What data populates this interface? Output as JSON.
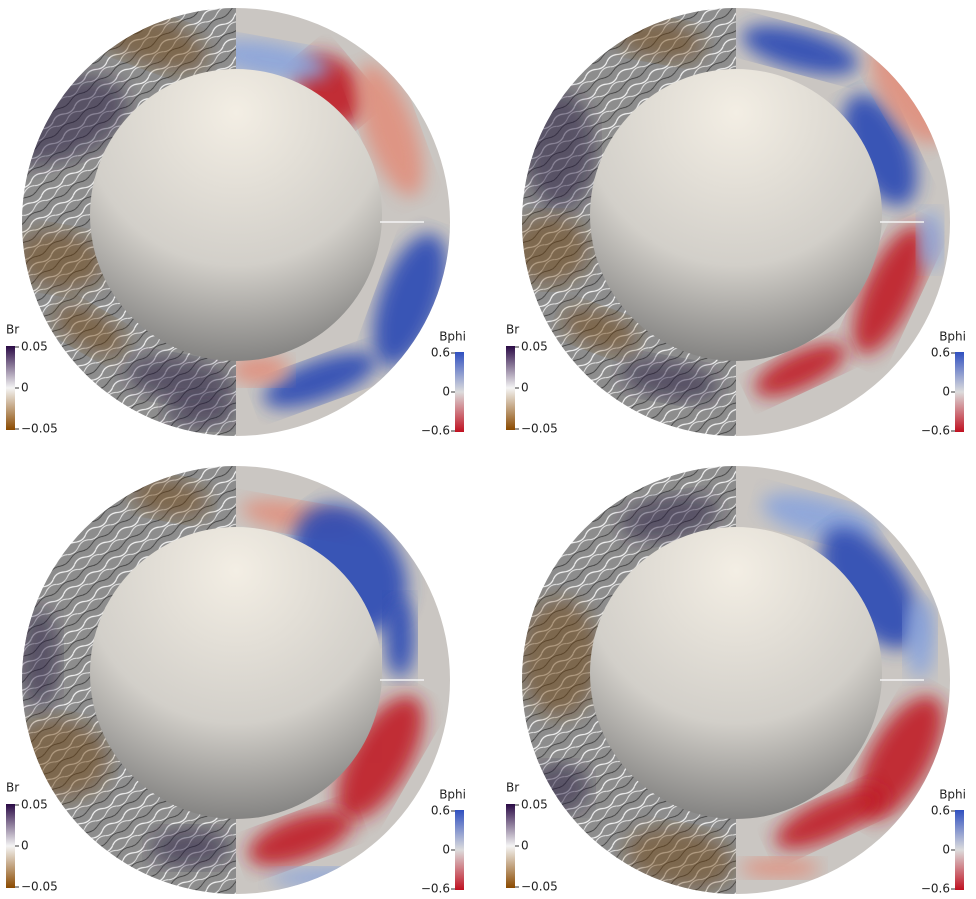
{
  "panels": [
    {
      "left_bar": {
        "title": "Br",
        "ticks": [
          "0.05",
          "0",
          "−0.05"
        ]
      },
      "right_bar": {
        "title": "Bphi",
        "ticks": [
          "0.6",
          "0",
          "−0.6"
        ]
      }
    },
    {
      "left_bar": {
        "title": "Br",
        "ticks": [
          "0.05",
          "0",
          "−0.05"
        ]
      },
      "right_bar": {
        "title": "Bphi",
        "ticks": [
          "0.6",
          "0",
          "−0.6"
        ]
      }
    },
    {
      "left_bar": {
        "title": "Br",
        "ticks": [
          "0.05",
          "0",
          "−0.05"
        ]
      },
      "right_bar": {
        "title": "Bphi",
        "ticks": [
          "0.6",
          "0",
          "−0.6"
        ]
      }
    },
    {
      "left_bar": {
        "title": "Br",
        "ticks": [
          "0.05",
          "0",
          "−0.05"
        ]
      },
      "right_bar": {
        "title": "Bphi",
        "ticks": [
          "0.6",
          "0",
          "−0.6"
        ]
      }
    }
  ]
}
